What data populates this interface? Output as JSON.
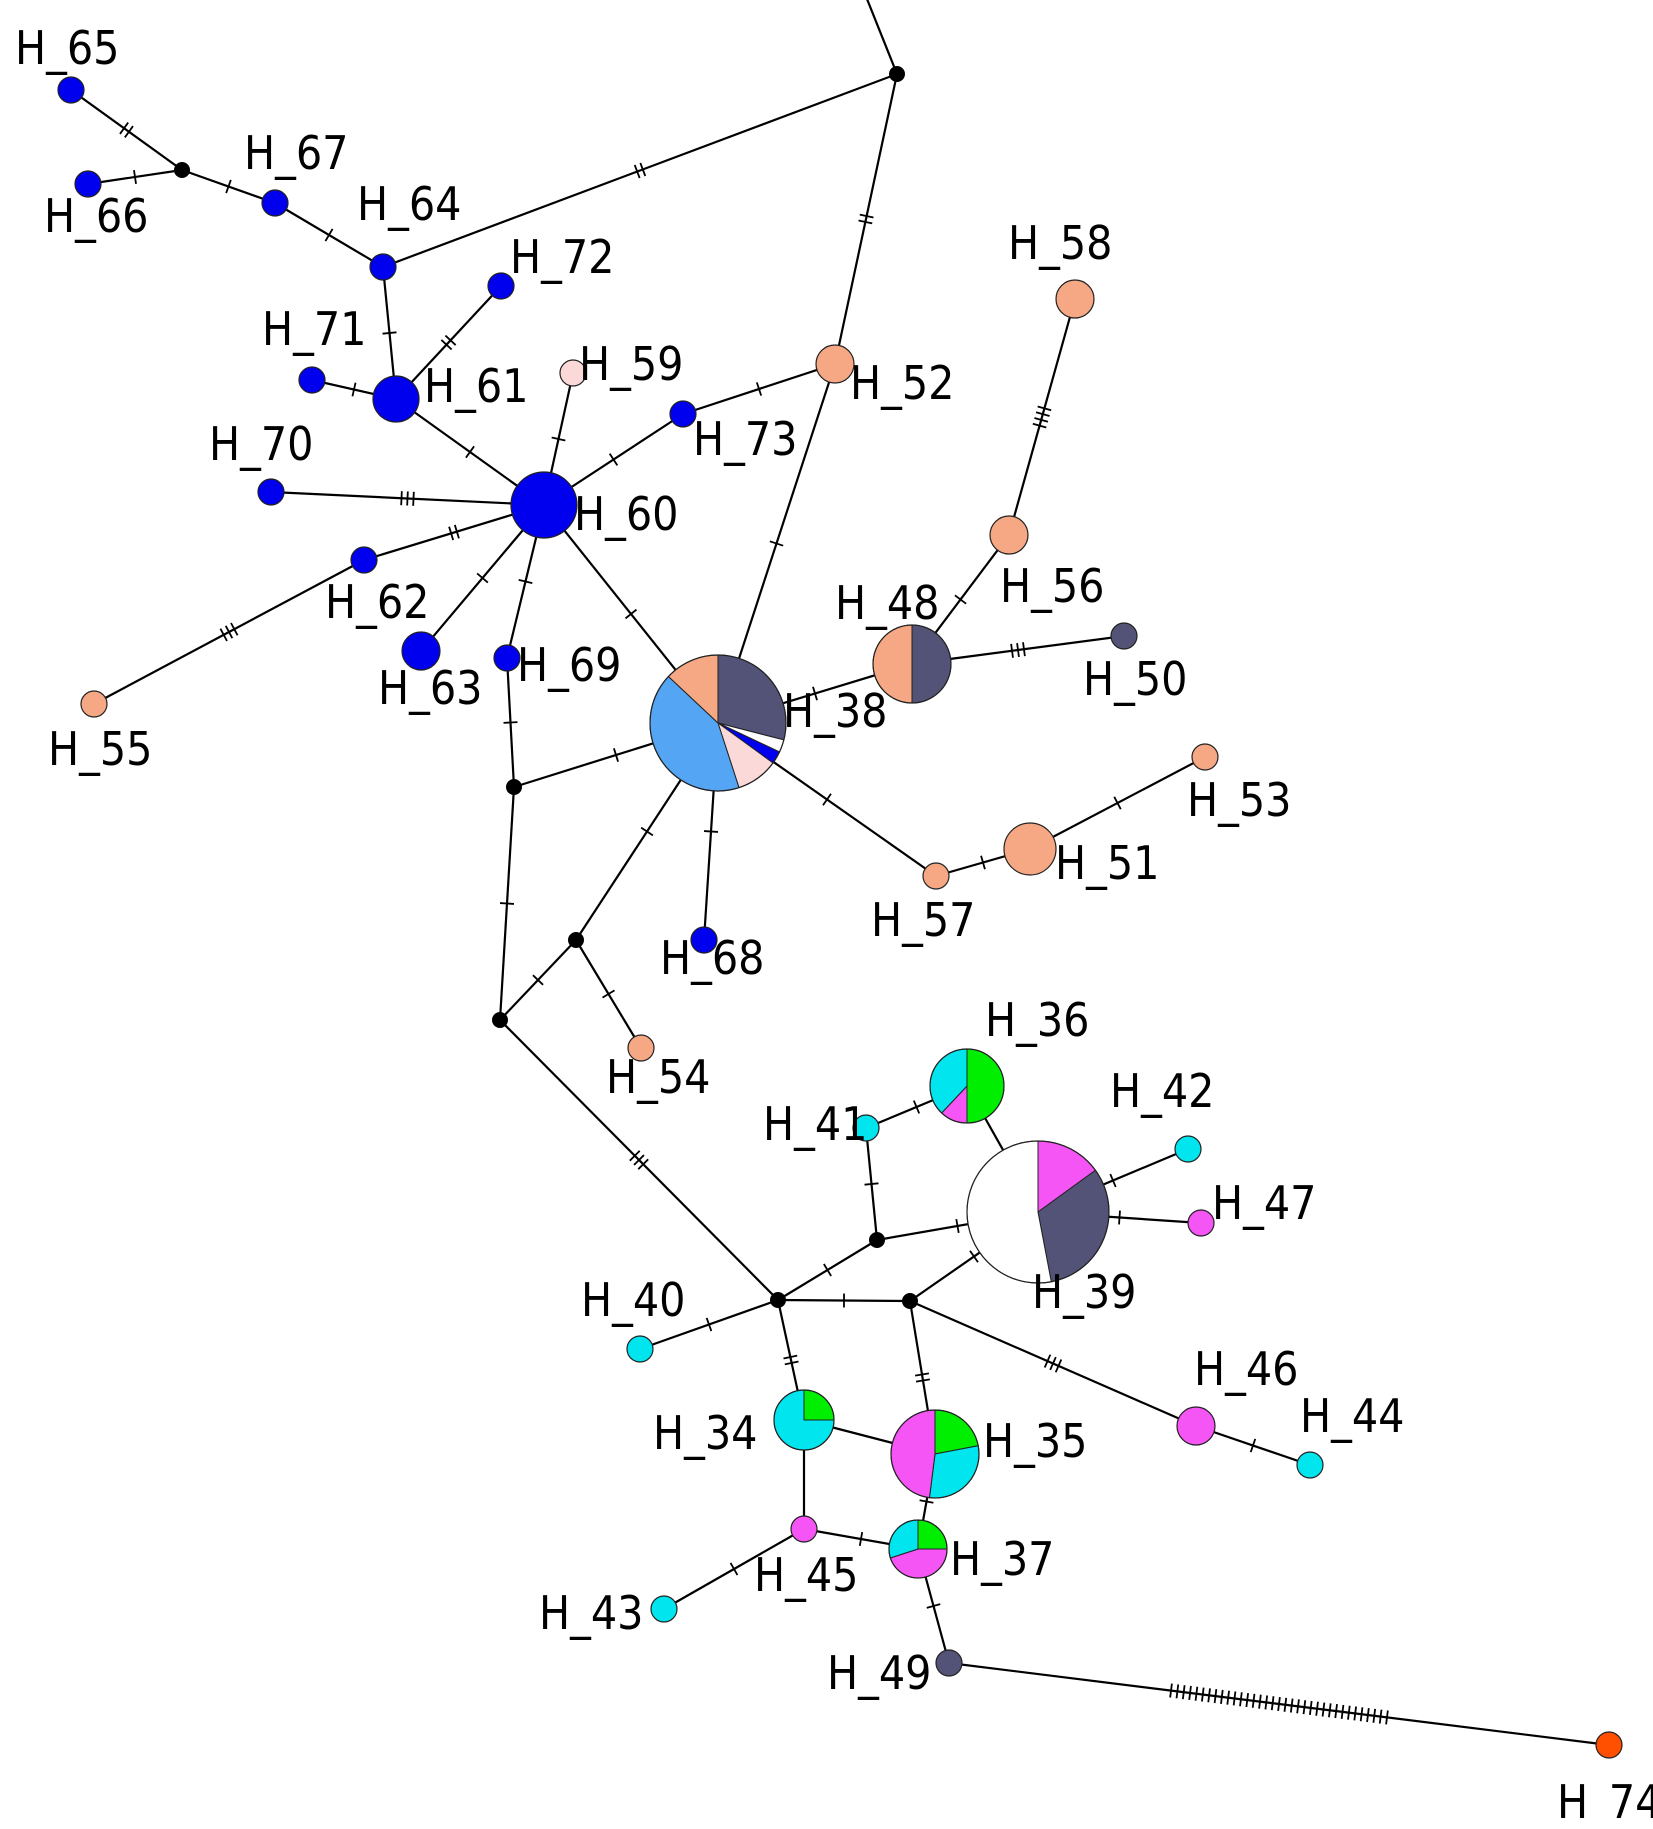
{
  "colors": {
    "blue": "#0000ee",
    "lightblue": "#55a5f5",
    "salmon": "#f5a883",
    "navy": "#535378",
    "pink": "#fbd9d9",
    "cyan": "#00e5ee",
    "magenta": "#f655f6",
    "green": "#00ee00",
    "orange": "#ff4f00",
    "white": "#ffffff",
    "median": "#000000",
    "edge": "#000000"
  },
  "haplotypes": [
    {
      "id": "H_34",
      "label": "H_34",
      "slices": [
        [
          "green",
          0.25
        ],
        [
          "cyan",
          0.75
        ]
      ]
    },
    {
      "id": "H_35",
      "label": "H_35",
      "slices": [
        [
          "green",
          0.22
        ],
        [
          "cyan",
          0.3
        ],
        [
          "magenta",
          0.48
        ]
      ]
    },
    {
      "id": "H_36",
      "label": "H_36",
      "slices": [
        [
          "green",
          0.5
        ],
        [
          "magenta",
          0.12
        ],
        [
          "cyan",
          0.38
        ]
      ]
    },
    {
      "id": "H_37",
      "label": "H_37",
      "slices": [
        [
          "green",
          0.25
        ],
        [
          "magenta",
          0.45
        ],
        [
          "cyan",
          0.3
        ]
      ]
    },
    {
      "id": "H_38",
      "label": "H_38",
      "slices": [
        [
          "navy",
          0.29
        ],
        [
          "white",
          0.03
        ],
        [
          "blue",
          0.03
        ],
        [
          "pink",
          0.1
        ],
        [
          "lightblue",
          0.42
        ],
        [
          "salmon",
          0.13
        ]
      ]
    },
    {
      "id": "H_39",
      "label": "H_39",
      "slices": [
        [
          "magenta",
          0.15
        ],
        [
          "navy",
          0.32
        ],
        [
          "white",
          0.53
        ]
      ]
    },
    {
      "id": "H_40",
      "label": "H_40",
      "slices": [
        [
          "cyan",
          1
        ]
      ]
    },
    {
      "id": "H_41",
      "label": "H_41",
      "slices": [
        [
          "cyan",
          1
        ]
      ]
    },
    {
      "id": "H_42",
      "label": "H_42",
      "slices": [
        [
          "cyan",
          1
        ]
      ]
    },
    {
      "id": "H_43",
      "label": "H_43",
      "slices": [
        [
          "cyan",
          1
        ]
      ]
    },
    {
      "id": "H_44",
      "label": "H_44",
      "slices": [
        [
          "cyan",
          1
        ]
      ]
    },
    {
      "id": "H_45",
      "label": "H_45",
      "slices": [
        [
          "magenta",
          1
        ]
      ]
    },
    {
      "id": "H_46",
      "label": "H_46",
      "slices": [
        [
          "magenta",
          1
        ]
      ]
    },
    {
      "id": "H_47",
      "label": "H_47",
      "slices": [
        [
          "magenta",
          1
        ]
      ]
    },
    {
      "id": "H_48",
      "label": "H_48",
      "slices": [
        [
          "navy",
          0.5
        ],
        [
          "salmon",
          0.5
        ]
      ]
    },
    {
      "id": "H_49",
      "label": "H_49",
      "slices": [
        [
          "navy",
          1
        ]
      ]
    },
    {
      "id": "H_50",
      "label": "H_50",
      "slices": [
        [
          "navy",
          1
        ]
      ]
    },
    {
      "id": "H_51",
      "label": "H_51",
      "slices": [
        [
          "salmon",
          1
        ]
      ]
    },
    {
      "id": "H_52",
      "label": "H_52",
      "slices": [
        [
          "salmon",
          1
        ]
      ]
    },
    {
      "id": "H_53",
      "label": "H_53",
      "slices": [
        [
          "salmon",
          1
        ]
      ]
    },
    {
      "id": "H_54",
      "label": "H_54",
      "slices": [
        [
          "salmon",
          1
        ]
      ]
    },
    {
      "id": "H_55",
      "label": "H_55",
      "slices": [
        [
          "salmon",
          1
        ]
      ]
    },
    {
      "id": "H_56",
      "label": "H_56",
      "slices": [
        [
          "salmon",
          1
        ]
      ]
    },
    {
      "id": "H_57",
      "label": "H_57",
      "slices": [
        [
          "salmon",
          1
        ]
      ]
    },
    {
      "id": "H_58",
      "label": "H_58",
      "slices": [
        [
          "salmon",
          1
        ]
      ]
    },
    {
      "id": "H_59",
      "label": "H_59",
      "slices": [
        [
          "pink",
          1
        ]
      ]
    },
    {
      "id": "H_60",
      "label": "H_60",
      "slices": [
        [
          "blue",
          1
        ]
      ]
    },
    {
      "id": "H_61",
      "label": "H_61",
      "slices": [
        [
          "blue",
          1
        ]
      ]
    },
    {
      "id": "H_62",
      "label": "H_62",
      "slices": [
        [
          "blue",
          1
        ]
      ]
    },
    {
      "id": "H_63",
      "label": "H_63",
      "slices": [
        [
          "blue",
          1
        ]
      ]
    },
    {
      "id": "H_64",
      "label": "H_64",
      "slices": [
        [
          "blue",
          1
        ]
      ]
    },
    {
      "id": "H_65",
      "label": "H_65",
      "slices": [
        [
          "blue",
          1
        ]
      ]
    },
    {
      "id": "H_66",
      "label": "H_66",
      "slices": [
        [
          "blue",
          1
        ]
      ]
    },
    {
      "id": "H_67",
      "label": "H_67",
      "slices": [
        [
          "blue",
          1
        ]
      ]
    },
    {
      "id": "H_68",
      "label": "H_68",
      "slices": [
        [
          "blue",
          1
        ]
      ]
    },
    {
      "id": "H_69",
      "label": "H_69",
      "slices": [
        [
          "blue",
          1
        ]
      ]
    },
    {
      "id": "H_70",
      "label": "H_70",
      "slices": [
        [
          "blue",
          1
        ]
      ]
    },
    {
      "id": "H_71",
      "label": "H_71",
      "slices": [
        [
          "blue",
          1
        ]
      ]
    },
    {
      "id": "H_72",
      "label": "H_72",
      "slices": [
        [
          "blue",
          1
        ]
      ]
    },
    {
      "id": "H_73",
      "label": "H_73",
      "slices": [
        [
          "blue",
          1
        ]
      ]
    },
    {
      "id": "H_74",
      "label": "H_74",
      "slices": [
        [
          "orange",
          1
        ]
      ]
    }
  ],
  "median_vectors": [
    "mv1",
    "mv2",
    "mv3",
    "mv4",
    "mv5",
    "mv6",
    "mv7",
    "mv8",
    "mv9"
  ],
  "edges": [
    {
      "from": "H_65",
      "to": "mv1",
      "mutations": 2
    },
    {
      "from": "H_66",
      "to": "mv1",
      "mutations": 1
    },
    {
      "from": "mv1",
      "to": "H_67",
      "mutations": 1
    },
    {
      "from": "H_67",
      "to": "H_64",
      "mutations": 1
    },
    {
      "from": "H_64",
      "to": "mv2",
      "mutations": 2
    },
    {
      "from": "mv2",
      "to": "H_52",
      "mutations": 2
    },
    {
      "from": "H_64",
      "to": "H_61",
      "mutations": 1
    },
    {
      "from": "H_61",
      "to": "H_72",
      "mutations": 2
    },
    {
      "from": "H_61",
      "to": "H_71",
      "mutations": 1
    },
    {
      "from": "H_61",
      "to": "H_60",
      "mutations": 1
    },
    {
      "from": "H_60",
      "to": "H_59",
      "mutations": 1
    },
    {
      "from": "H_60",
      "to": "H_73",
      "mutations": 1
    },
    {
      "from": "H_73",
      "to": "H_52",
      "mutations": 1
    },
    {
      "from": "H_60",
      "to": "H_70",
      "mutations": 3
    },
    {
      "from": "H_60",
      "to": "H_62",
      "mutations": 2
    },
    {
      "from": "H_62",
      "to": "H_55",
      "mutations": 3
    },
    {
      "from": "H_60",
      "to": "H_63",
      "mutations": 1
    },
    {
      "from": "H_60",
      "to": "H_69",
      "mutations": 1
    },
    {
      "from": "H_60",
      "to": "H_38",
      "mutations": 1
    },
    {
      "from": "H_69",
      "to": "mv3",
      "mutations": 1
    },
    {
      "from": "H_52",
      "to": "H_38",
      "mutations": 1
    },
    {
      "from": "H_38",
      "to": "H_48",
      "mutations": 1
    },
    {
      "from": "H_48",
      "to": "H_56",
      "mutations": 1
    },
    {
      "from": "H_56",
      "to": "H_58",
      "mutations": 4
    },
    {
      "from": "H_48",
      "to": "H_50",
      "mutations": 3
    },
    {
      "from": "H_38",
      "to": "mv3",
      "mutations": 1
    },
    {
      "from": "H_38",
      "to": "mv4",
      "mutations": 1
    },
    {
      "from": "H_38",
      "to": "H_68",
      "mutations": 1
    },
    {
      "from": "H_38",
      "to": "H_57",
      "mutations": 1
    },
    {
      "from": "H_57",
      "to": "H_51",
      "mutations": 1
    },
    {
      "from": "H_51",
      "to": "H_53",
      "mutations": 1
    },
    {
      "from": "mv4",
      "to": "H_54",
      "mutations": 1
    },
    {
      "from": "mv4",
      "to": "mv5",
      "mutations": 1
    },
    {
      "from": "mv3",
      "to": "mv5",
      "mutations": 1
    },
    {
      "from": "mv5",
      "to": "mv6",
      "mutations": 3
    },
    {
      "from": "mv6",
      "to": "H_40",
      "mutations": 1
    },
    {
      "from": "mv6",
      "to": "mv7",
      "mutations": 1
    },
    {
      "from": "mv6",
      "to": "mv8",
      "mutations": 1
    },
    {
      "from": "mv6",
      "to": "H_34",
      "mutations": 2
    },
    {
      "from": "mv7",
      "to": "H_41",
      "mutations": 1
    },
    {
      "from": "mv7",
      "to": "H_39",
      "mutations": 1
    },
    {
      "from": "H_41",
      "to": "H_36",
      "mutations": 1
    },
    {
      "from": "H_36",
      "to": "H_39",
      "mutations": 0
    },
    {
      "from": "H_39",
      "to": "H_42",
      "mutations": 1
    },
    {
      "from": "H_39",
      "to": "H_47",
      "mutations": 1
    },
    {
      "from": "mv8",
      "to": "H_39",
      "mutations": 1
    },
    {
      "from": "mv8",
      "to": "H_35",
      "mutations": 2
    },
    {
      "from": "mv8",
      "to": "H_46",
      "mutations": 3
    },
    {
      "from": "H_46",
      "to": "H_44",
      "mutations": 1
    },
    {
      "from": "H_34",
      "to": "H_35",
      "mutations": 0
    },
    {
      "from": "H_34",
      "to": "H_45",
      "mutations": 0
    },
    {
      "from": "H_45",
      "to": "H_37",
      "mutations": 1
    },
    {
      "from": "H_45",
      "to": "H_43",
      "mutations": 1
    },
    {
      "from": "H_35",
      "to": "H_37",
      "mutations": 1
    },
    {
      "from": "H_37",
      "to": "H_49",
      "mutations": 1
    },
    {
      "from": "H_49",
      "to": "H_74",
      "mutations": 35
    },
    {
      "from": "mv2",
      "to": "mv9",
      "mutations": 0
    }
  ]
}
